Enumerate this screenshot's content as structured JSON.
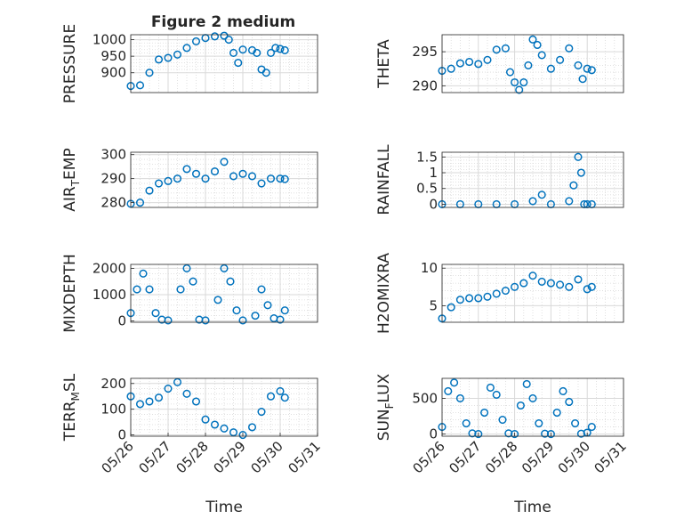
{
  "figure": {
    "title": "Figure 2 medium"
  },
  "colors": {
    "marker": "#0072bd",
    "axis": "#262626",
    "grid": "#d9d9d9",
    "background": "#ffffff"
  },
  "chart_data": [
    {
      "type": "scatter",
      "id": "pressure",
      "ylabel": "PRESSURE",
      "ylabel_sub": null,
      "xlabel": "",
      "xlim": [
        "05/26",
        "05/31"
      ],
      "ylim": [
        840,
        1015
      ],
      "yticks": [
        900,
        950,
        1000
      ],
      "grid": true,
      "show_xticklabels": false,
      "x": [
        "05/26 00:00",
        "05/26 06:00",
        "05/26 12:00",
        "05/26 18:00",
        "05/27 00:00",
        "05/27 06:00",
        "05/27 12:00",
        "05/27 18:00",
        "05/28 00:00",
        "05/28 06:00",
        "05/28 12:00",
        "05/28 15:00",
        "05/28 18:00",
        "05/28 21:00",
        "05/29 00:00",
        "05/29 06:00",
        "05/29 09:00",
        "05/29 12:00",
        "05/29 15:00",
        "05/29 18:00",
        "05/29 21:00",
        "05/30 00:00",
        "05/30 03:00"
      ],
      "y": [
        860,
        862,
        900,
        940,
        945,
        955,
        975,
        995,
        1005,
        1010,
        1012,
        1000,
        960,
        930,
        970,
        968,
        960,
        910,
        900,
        960,
        975,
        972,
        968
      ]
    },
    {
      "type": "scatter",
      "id": "theta",
      "ylabel": "THETA",
      "ylabel_sub": null,
      "xlabel": "",
      "xlim": [
        "05/26",
        "05/31"
      ],
      "ylim": [
        289,
        297.5
      ],
      "yticks": [
        290,
        295
      ],
      "grid": true,
      "show_xticklabels": false,
      "x": [
        "05/26 00:00",
        "05/26 06:00",
        "05/26 12:00",
        "05/26 18:00",
        "05/27 00:00",
        "05/27 06:00",
        "05/27 12:00",
        "05/27 18:00",
        "05/27 21:00",
        "05/28 00:00",
        "05/28 03:00",
        "05/28 06:00",
        "05/28 09:00",
        "05/28 12:00",
        "05/28 15:00",
        "05/28 18:00",
        "05/29 00:00",
        "05/29 06:00",
        "05/29 12:00",
        "05/29 18:00",
        "05/29 21:00",
        "05/30 00:00",
        "05/30 03:00"
      ],
      "y": [
        292.2,
        292.5,
        293.3,
        293.5,
        293.2,
        293.8,
        295.3,
        295.5,
        292,
        290.5,
        289.4,
        290.5,
        293,
        296.8,
        296,
        294.5,
        292.5,
        293.8,
        295.5,
        293,
        291,
        292.5,
        292.3
      ]
    },
    {
      "type": "scatter",
      "id": "air_temp",
      "ylabel": "AIR",
      "ylabel_sub": "T",
      "ylabel_suffix": "EMP",
      "xlabel": "",
      "xlim": [
        "05/26",
        "05/31"
      ],
      "ylim": [
        278,
        301
      ],
      "yticks": [
        280,
        290,
        300
      ],
      "grid": true,
      "show_xticklabels": false,
      "x": [
        "05/26 00:00",
        "05/26 06:00",
        "05/26 12:00",
        "05/26 18:00",
        "05/27 00:00",
        "05/27 06:00",
        "05/27 12:00",
        "05/27 18:00",
        "05/28 00:00",
        "05/28 06:00",
        "05/28 12:00",
        "05/28 18:00",
        "05/29 00:00",
        "05/29 06:00",
        "05/29 12:00",
        "05/29 18:00",
        "05/30 00:00",
        "05/30 03:00"
      ],
      "y": [
        279.5,
        280,
        285,
        288,
        289,
        290,
        294,
        292,
        290,
        293,
        297,
        291,
        292,
        291,
        288,
        290,
        290,
        289.8
      ]
    },
    {
      "type": "scatter",
      "id": "rainfall",
      "ylabel": "RAINFALL",
      "ylabel_sub": null,
      "xlabel": "",
      "xlim": [
        "05/26",
        "05/31"
      ],
      "ylim": [
        -0.1,
        1.65
      ],
      "yticks": [
        0,
        0.5,
        1,
        1.5
      ],
      "grid": true,
      "show_xticklabels": false,
      "x": [
        "05/26 00:00",
        "05/26 12:00",
        "05/27 00:00",
        "05/27 12:00",
        "05/28 00:00",
        "05/28 12:00",
        "05/28 18:00",
        "05/29 00:00",
        "05/29 12:00",
        "05/29 15:00",
        "05/29 18:00",
        "05/29 20:00",
        "05/29 22:00",
        "05/30 00:00",
        "05/30 03:00"
      ],
      "y": [
        0,
        0,
        0,
        0,
        0,
        0.1,
        0.3,
        0,
        0.1,
        0.6,
        1.5,
        1.0,
        0,
        0,
        0
      ]
    },
    {
      "type": "scatter",
      "id": "mixdepth",
      "ylabel": "MIXDEPTH",
      "ylabel_sub": null,
      "xlabel": "",
      "xlim": [
        "05/26",
        "05/31"
      ],
      "ylim": [
        -50,
        2150
      ],
      "yticks": [
        0,
        1000,
        2000
      ],
      "grid": true,
      "show_xticklabels": false,
      "x": [
        "05/26 00:00",
        "05/26 04:00",
        "05/26 08:00",
        "05/26 12:00",
        "05/26 16:00",
        "05/26 20:00",
        "05/27 00:00",
        "05/27 08:00",
        "05/27 12:00",
        "05/27 16:00",
        "05/27 20:00",
        "05/28 00:00",
        "05/28 08:00",
        "05/28 12:00",
        "05/28 16:00",
        "05/28 20:00",
        "05/29 00:00",
        "05/29 08:00",
        "05/29 12:00",
        "05/29 16:00",
        "05/29 20:00",
        "05/30 00:00",
        "05/30 03:00"
      ],
      "y": [
        300,
        1200,
        1800,
        1200,
        300,
        50,
        20,
        1200,
        2000,
        1500,
        50,
        20,
        800,
        2000,
        1500,
        400,
        20,
        200,
        1200,
        600,
        100,
        50,
        400
      ]
    },
    {
      "type": "scatter",
      "id": "h2omixra",
      "ylabel": "H2OMIXRA",
      "ylabel_sub": null,
      "xlabel": "",
      "xlim": [
        "05/26",
        "05/31"
      ],
      "ylim": [
        2.8,
        10.5
      ],
      "yticks": [
        5,
        10
      ],
      "grid": true,
      "show_xticklabels": false,
      "x": [
        "05/26 00:00",
        "05/26 06:00",
        "05/26 12:00",
        "05/26 18:00",
        "05/27 00:00",
        "05/27 06:00",
        "05/27 12:00",
        "05/27 18:00",
        "05/28 00:00",
        "05/28 06:00",
        "05/28 12:00",
        "05/28 18:00",
        "05/29 00:00",
        "05/29 06:00",
        "05/29 12:00",
        "05/29 18:00",
        "05/30 00:00",
        "05/30 03:00"
      ],
      "y": [
        3.3,
        4.8,
        5.8,
        6.0,
        6.0,
        6.2,
        6.6,
        7.0,
        7.5,
        8.0,
        9.0,
        8.2,
        8.0,
        7.8,
        7.5,
        8.5,
        7.2,
        7.5
      ]
    },
    {
      "type": "scatter",
      "id": "terr_msl",
      "ylabel": "TERR",
      "ylabel_sub": "M",
      "ylabel_suffix": "SL",
      "xlabel": "Time",
      "xlim": [
        "05/26",
        "05/31"
      ],
      "ylim": [
        -5,
        220
      ],
      "yticks": [
        0,
        100,
        200
      ],
      "grid": true,
      "show_xticklabels": true,
      "xticklabels": [
        "05/26",
        "05/27",
        "05/28",
        "05/29",
        "05/30",
        "05/31"
      ],
      "x": [
        "05/26 00:00",
        "05/26 06:00",
        "05/26 12:00",
        "05/26 18:00",
        "05/27 00:00",
        "05/27 06:00",
        "05/27 12:00",
        "05/27 18:00",
        "05/28 00:00",
        "05/28 06:00",
        "05/28 12:00",
        "05/28 18:00",
        "05/29 00:00",
        "05/29 06:00",
        "05/29 12:00",
        "05/29 18:00",
        "05/30 00:00",
        "05/30 03:00"
      ],
      "y": [
        150,
        120,
        130,
        145,
        180,
        205,
        160,
        130,
        60,
        40,
        25,
        10,
        0,
        30,
        90,
        150,
        170,
        145
      ]
    },
    {
      "type": "scatter",
      "id": "sun_flux",
      "ylabel": "SUN",
      "ylabel_sub": "F",
      "ylabel_suffix": "LUX",
      "xlabel": "Time",
      "xlim": [
        "05/26",
        "05/31"
      ],
      "ylim": [
        -30,
        780
      ],
      "yticks": [
        0,
        500
      ],
      "grid": true,
      "show_xticklabels": true,
      "xticklabels": [
        "05/26",
        "05/27",
        "05/28",
        "05/29",
        "05/30",
        "05/31"
      ],
      "x": [
        "05/26 00:00",
        "05/26 04:00",
        "05/26 08:00",
        "05/26 12:00",
        "05/26 16:00",
        "05/26 20:00",
        "05/27 00:00",
        "05/27 04:00",
        "05/27 08:00",
        "05/27 12:00",
        "05/27 16:00",
        "05/27 20:00",
        "05/28 00:00",
        "05/28 04:00",
        "05/28 08:00",
        "05/28 12:00",
        "05/28 16:00",
        "05/28 20:00",
        "05/29 00:00",
        "05/29 04:00",
        "05/29 08:00",
        "05/29 12:00",
        "05/29 16:00",
        "05/29 20:00",
        "05/30 00:00",
        "05/30 03:00"
      ],
      "y": [
        100,
        600,
        720,
        500,
        150,
        10,
        0,
        300,
        650,
        550,
        200,
        10,
        0,
        400,
        700,
        500,
        150,
        5,
        0,
        300,
        600,
        450,
        150,
        5,
        20,
        100
      ]
    }
  ]
}
